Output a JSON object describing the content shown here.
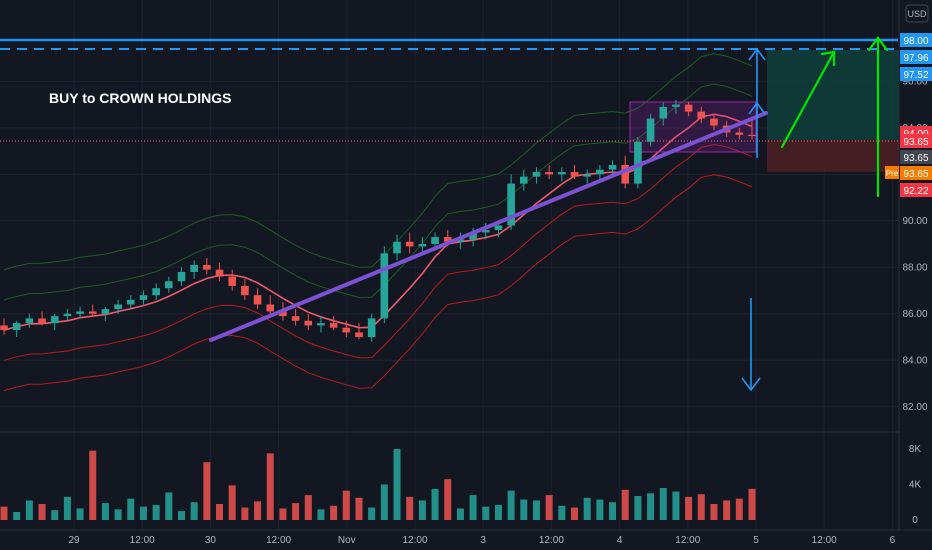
{
  "annotation_text": "BUY to CROWN HOLDINGS",
  "currency_button": "USD",
  "pre_badge": "Pre",
  "colors": {
    "background": "#131722",
    "grid": "#1e222d",
    "up": "#26a69a",
    "down": "#ef5350",
    "trendline": "#7b52d3",
    "arrow_blue": "#2196f3",
    "arrow_green": "#00e600",
    "level_line": "#2196f3",
    "ma_line": "#f05b6a",
    "band_inner": "#1b5e20",
    "band_outer": "#b71c1c",
    "box_fill": "#9c27b0",
    "target_fill": "#0f3d3a",
    "stop_fill": "#4a1f24"
  },
  "chart_data": {
    "type": "candlestick",
    "price_axis": {
      "ticks": [
        "82.00",
        "84.00",
        "86.00",
        "88.00",
        "90.00",
        "92.00",
        "94.00",
        "96.00"
      ],
      "range": [
        81.0,
        99.5
      ]
    },
    "volume_axis": {
      "ticks": [
        "0",
        "4K",
        "8K"
      ],
      "range": [
        0,
        9000
      ]
    },
    "time_axis": {
      "labels": [
        "29",
        "12:00",
        "30",
        "12:00",
        "Nov",
        "12:00",
        "3",
        "12:00",
        "4",
        "12:00",
        "5",
        "12:00",
        "6"
      ]
    },
    "price_labels": [
      {
        "value": "98.00",
        "color": "#2196f3"
      },
      {
        "value": "97.96",
        "color": "#2196f3"
      },
      {
        "value": "97.52",
        "color": "#2196f3"
      },
      {
        "value": "94.00",
        "color": "#f23645"
      },
      {
        "value": "93.65",
        "color": "#f23645"
      },
      {
        "value": "93.65",
        "color": "#434651"
      },
      {
        "value": "93.65",
        "color": "#f57c00"
      },
      {
        "value": "92.22",
        "color": "#f23645"
      }
    ],
    "levels": {
      "solid_line": 98.0,
      "dashed_line": 97.96,
      "current_price": 93.65,
      "target": 97.52,
      "stop": 92.22
    },
    "candles": [
      [
        85.5,
        85.8,
        85.1,
        85.3
      ],
      [
        85.3,
        85.7,
        85.0,
        85.6
      ],
      [
        85.6,
        86.0,
        85.4,
        85.8
      ],
      [
        85.8,
        86.1,
        85.5,
        85.6
      ],
      [
        85.6,
        86.0,
        85.3,
        85.9
      ],
      [
        85.9,
        86.2,
        85.7,
        86.0
      ],
      [
        86.0,
        86.3,
        85.8,
        86.1
      ],
      [
        86.1,
        86.4,
        85.9,
        86.0
      ],
      [
        86.0,
        86.3,
        85.7,
        86.2
      ],
      [
        86.2,
        86.6,
        86.0,
        86.4
      ],
      [
        86.4,
        86.8,
        86.2,
        86.6
      ],
      [
        86.6,
        87.0,
        86.4,
        86.8
      ],
      [
        86.8,
        87.3,
        86.6,
        87.1
      ],
      [
        87.1,
        87.6,
        86.9,
        87.4
      ],
      [
        87.4,
        88.0,
        87.2,
        87.8
      ],
      [
        87.8,
        88.3,
        87.5,
        88.1
      ],
      [
        88.1,
        88.4,
        87.7,
        87.9
      ],
      [
        87.9,
        88.2,
        87.4,
        87.6
      ],
      [
        87.6,
        87.9,
        87.0,
        87.2
      ],
      [
        87.2,
        87.5,
        86.6,
        86.8
      ],
      [
        86.8,
        87.1,
        86.2,
        86.4
      ],
      [
        86.4,
        86.8,
        85.9,
        86.1
      ],
      [
        86.1,
        86.5,
        85.7,
        85.9
      ],
      [
        85.9,
        86.2,
        85.5,
        85.7
      ],
      [
        85.7,
        86.0,
        85.3,
        85.5
      ],
      [
        85.5,
        85.9,
        85.2,
        85.6
      ],
      [
        85.6,
        85.9,
        85.3,
        85.4
      ],
      [
        85.4,
        85.7,
        85.0,
        85.2
      ],
      [
        85.2,
        85.6,
        84.9,
        85.0
      ],
      [
        85.0,
        86.0,
        84.8,
        85.8
      ],
      [
        85.8,
        88.9,
        85.6,
        88.6
      ],
      [
        88.6,
        89.4,
        88.3,
        89.1
      ],
      [
        89.1,
        89.5,
        88.6,
        88.9
      ],
      [
        88.9,
        89.3,
        88.5,
        89.0
      ],
      [
        89.0,
        89.5,
        88.7,
        89.3
      ],
      [
        89.3,
        89.6,
        88.9,
        89.1
      ],
      [
        89.1,
        89.5,
        88.8,
        89.2
      ],
      [
        89.2,
        89.7,
        88.9,
        89.5
      ],
      [
        89.5,
        89.9,
        89.2,
        89.6
      ],
      [
        89.6,
        90.0,
        89.3,
        89.8
      ],
      [
        89.8,
        92.0,
        89.6,
        91.6
      ],
      [
        91.6,
        92.2,
        91.3,
        91.9
      ],
      [
        91.9,
        92.3,
        91.6,
        92.1
      ],
      [
        92.1,
        92.4,
        91.8,
        92.0
      ],
      [
        92.0,
        92.3,
        91.7,
        92.1
      ],
      [
        92.1,
        92.4,
        91.8,
        91.9
      ],
      [
        91.9,
        92.2,
        91.6,
        92.0
      ],
      [
        92.0,
        92.4,
        91.8,
        92.2
      ],
      [
        92.2,
        92.6,
        92.0,
        92.4
      ],
      [
        92.4,
        92.8,
        91.4,
        91.6
      ],
      [
        91.6,
        93.6,
        91.4,
        93.4
      ],
      [
        93.4,
        94.6,
        93.2,
        94.4
      ],
      [
        94.4,
        95.1,
        94.1,
        94.9
      ],
      [
        94.9,
        95.2,
        94.6,
        95.0
      ],
      [
        95.0,
        95.1,
        94.5,
        94.7
      ],
      [
        94.7,
        94.9,
        94.2,
        94.4
      ],
      [
        94.4,
        94.6,
        93.9,
        94.1
      ],
      [
        94.1,
        94.3,
        93.6,
        93.8
      ],
      [
        93.8,
        94.0,
        93.5,
        93.7
      ],
      [
        93.7,
        94.4,
        93.5,
        93.65
      ]
    ],
    "volume": [
      1500,
      900,
      2200,
      1800,
      1100,
      2600,
      1300,
      7800,
      1900,
      1200,
      2400,
      1500,
      1700,
      3100,
      1000,
      2000,
      6500,
      1800,
      3900,
      1400,
      2100,
      7500,
      1300,
      1900,
      2800,
      1200,
      1600,
      3300,
      2500,
      1400,
      4000,
      8000,
      2600,
      2200,
      3500,
      4600,
      1300,
      2800,
      1500,
      1700,
      3300,
      2300,
      2200,
      2800,
      1600,
      1400,
      2500,
      2300,
      2000,
      3400,
      2700,
      3000,
      3600,
      3200,
      2600,
      2900,
      1800,
      2200,
      2400,
      3500
    ]
  }
}
